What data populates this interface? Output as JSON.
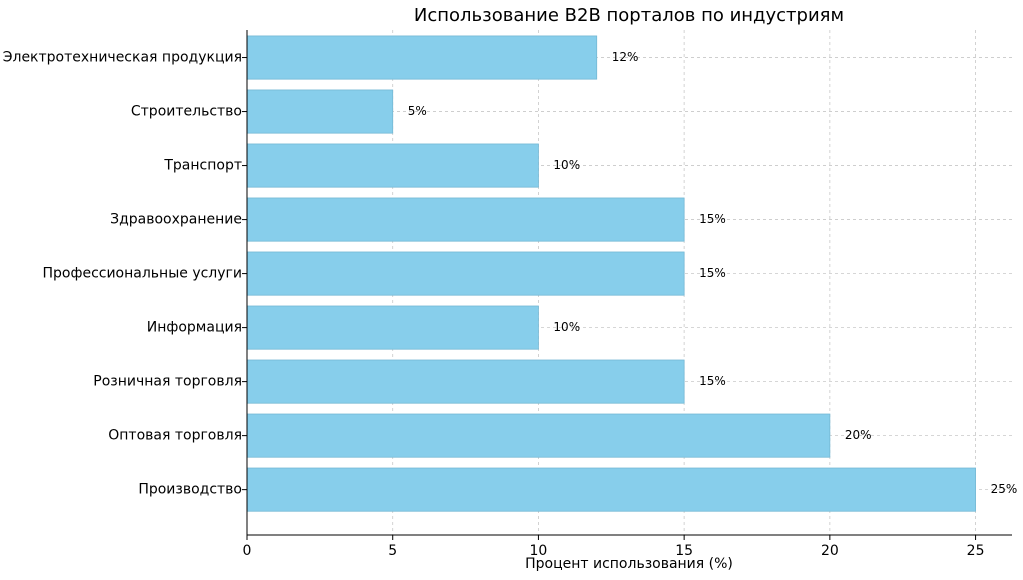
{
  "chart_data": {
    "type": "barh",
    "title": "Использование B2B порталов по индустриям",
    "xlabel": "Процент использования (%)",
    "categories": [
      "Производство",
      "Оптовая торговля",
      "Розничная торговля",
      "Информация",
      "Профессиональные услуги",
      "Здравоохранение",
      "Транспорт",
      "Строительство",
      "Электротехническая продукция"
    ],
    "values": [
      25,
      20,
      15,
      10,
      15,
      15,
      10,
      5,
      12
    ],
    "value_labels": [
      "25%",
      "20%",
      "15%",
      "10%",
      "15%",
      "15%",
      "10%",
      "5%",
      "12%"
    ],
    "color": "#87ceeb",
    "label_color": "#0000cd",
    "xlim": [
      0,
      26.25
    ],
    "xticks": [
      0,
      5,
      10,
      15,
      20,
      25
    ],
    "grid": true
  }
}
